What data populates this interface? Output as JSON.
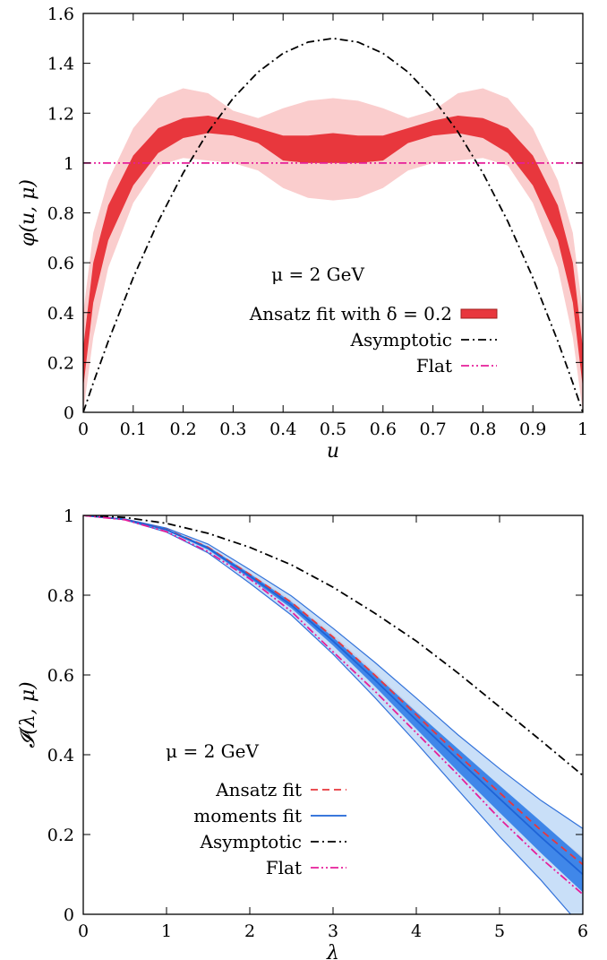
{
  "chart_data": [
    {
      "type": "line",
      "xlabel": "u",
      "ylabel": "φ(u, μ)",
      "xlim": [
        0,
        1
      ],
      "ylim": [
        0,
        1.6
      ],
      "xticks": [
        "0",
        "0.1",
        "0.2",
        "0.3",
        "0.4",
        "0.5",
        "0.6",
        "0.7",
        "0.8",
        "0.9",
        "1"
      ],
      "yticks": [
        "0",
        "0.2",
        "0.4",
        "0.6",
        "0.8",
        "1",
        "1.2",
        "1.4",
        "1.6"
      ],
      "grid": false,
      "legend_position": "center-bottom",
      "annotation": "μ = 2 GeV",
      "x": [
        0,
        0.02,
        0.05,
        0.1,
        0.15,
        0.2,
        0.25,
        0.3,
        0.35,
        0.4,
        0.45,
        0.5,
        0.55,
        0.6,
        0.65,
        0.7,
        0.75,
        0.8,
        0.85,
        0.9,
        0.95,
        0.98,
        1
      ],
      "series": [
        {
          "name": "Ansatz fit with δ = 0.2",
          "style": "band",
          "color": "#e8373d",
          "outer_color": "#f9c8c8",
          "center": [
            0.18,
            0.52,
            0.76,
            0.97,
            1.09,
            1.15,
            1.16,
            1.14,
            1.11,
            1.06,
            1.05,
            1.05,
            1.05,
            1.06,
            1.11,
            1.14,
            1.16,
            1.15,
            1.09,
            0.97,
            0.76,
            0.52,
            0.18
          ],
          "lower": [
            0.1,
            0.44,
            0.69,
            0.91,
            1.04,
            1.1,
            1.12,
            1.11,
            1.08,
            1.01,
            1.0,
            1.0,
            1.0,
            1.01,
            1.08,
            1.11,
            1.12,
            1.1,
            1.04,
            0.91,
            0.69,
            0.44,
            0.1
          ],
          "upper": [
            0.26,
            0.6,
            0.83,
            1.03,
            1.14,
            1.18,
            1.19,
            1.17,
            1.14,
            1.11,
            1.11,
            1.12,
            1.11,
            1.11,
            1.14,
            1.17,
            1.19,
            1.18,
            1.14,
            1.03,
            0.83,
            0.6,
            0.26
          ],
          "outer_lower": [
            0.0,
            0.3,
            0.58,
            0.84,
            0.99,
            1.02,
            1.01,
            1.0,
            0.97,
            0.9,
            0.86,
            0.85,
            0.86,
            0.9,
            0.97,
            1.0,
            1.01,
            1.02,
            0.99,
            0.84,
            0.58,
            0.3,
            0.0
          ],
          "outer_upper": [
            0.4,
            0.72,
            0.93,
            1.14,
            1.26,
            1.3,
            1.28,
            1.21,
            1.18,
            1.22,
            1.25,
            1.26,
            1.25,
            1.22,
            1.18,
            1.21,
            1.28,
            1.3,
            1.26,
            1.14,
            0.93,
            0.72,
            0.4
          ]
        },
        {
          "name": "Asymptotic",
          "style": "dashdot",
          "color": "#000000",
          "values": [
            0,
            0.1176,
            0.285,
            0.54,
            0.765,
            0.96,
            1.125,
            1.26,
            1.365,
            1.44,
            1.485,
            1.5,
            1.485,
            1.44,
            1.365,
            1.26,
            1.125,
            0.96,
            0.765,
            0.54,
            0.285,
            0.1176,
            0
          ]
        },
        {
          "name": "Flat",
          "style": "dashdotdot",
          "color": "#e61e9a",
          "values": [
            1,
            1,
            1,
            1,
            1,
            1,
            1,
            1,
            1,
            1,
            1,
            1,
            1,
            1,
            1,
            1,
            1,
            1,
            1,
            1,
            1,
            1,
            1
          ]
        }
      ]
    },
    {
      "type": "line",
      "xlabel": "λ",
      "ylabel": "𝓘(λ, μ)",
      "xlim": [
        0,
        6
      ],
      "ylim": [
        0,
        1
      ],
      "xticks": [
        "0",
        "1",
        "2",
        "3",
        "4",
        "5",
        "6"
      ],
      "yticks": [
        "0",
        "0.2",
        "0.4",
        "0.6",
        "0.8",
        "1"
      ],
      "grid": false,
      "legend_position": "left-bottom",
      "annotation": "μ = 2 GeV",
      "x": [
        0,
        0.5,
        1,
        1.5,
        2,
        2.5,
        3,
        3.5,
        4,
        4.5,
        5,
        5.5,
        6
      ],
      "series": [
        {
          "name": "Ansatz fit",
          "style": "dashed",
          "color": "#e8373d",
          "band_color": "#b4505a",
          "values": [
            1,
            0.99,
            0.965,
            0.92,
            0.852,
            0.782,
            0.695,
            0.6,
            0.5,
            0.4,
            0.305,
            0.21,
            0.125
          ],
          "lower": [
            1,
            0.99,
            0.964,
            0.918,
            0.848,
            0.777,
            0.688,
            0.592,
            0.49,
            0.388,
            0.29,
            0.193,
            0.105
          ],
          "upper": [
            1,
            0.99,
            0.966,
            0.922,
            0.856,
            0.787,
            0.702,
            0.608,
            0.51,
            0.412,
            0.32,
            0.227,
            0.145
          ]
        },
        {
          "name": "moments fit",
          "style": "solid",
          "color": "#1e64d7",
          "band_color": "#2878e6",
          "outer_color": "#c4dcf8",
          "values": [
            1,
            0.99,
            0.964,
            0.918,
            0.848,
            0.775,
            0.685,
            0.588,
            0.487,
            0.388,
            0.29,
            0.193,
            0.1
          ],
          "lower": [
            1,
            0.99,
            0.962,
            0.914,
            0.842,
            0.767,
            0.674,
            0.572,
            0.465,
            0.358,
            0.255,
            0.153,
            0.055
          ],
          "upper": [
            1,
            0.99,
            0.966,
            0.922,
            0.854,
            0.783,
            0.695,
            0.602,
            0.507,
            0.415,
            0.323,
            0.232,
            0.14
          ],
          "outer_lower": [
            1,
            0.989,
            0.958,
            0.906,
            0.83,
            0.75,
            0.652,
            0.544,
            0.43,
            0.312,
            0.195,
            0.085,
            -0.035
          ],
          "outer_upper": [
            1,
            0.991,
            0.968,
            0.928,
            0.864,
            0.798,
            0.717,
            0.632,
            0.542,
            0.45,
            0.365,
            0.285,
            0.215
          ]
        },
        {
          "name": "Asymptotic",
          "style": "dashdot",
          "color": "#000000",
          "values": [
            1,
            0.995,
            0.98,
            0.955,
            0.92,
            0.876,
            0.82,
            0.755,
            0.685,
            0.605,
            0.52,
            0.435,
            0.348
          ]
        },
        {
          "name": "Flat",
          "style": "dashdotdot",
          "color": "#e61e9a",
          "values": [
            1,
            0.989,
            0.959,
            0.909,
            0.841,
            0.759,
            0.658,
            0.56,
            0.455,
            0.35,
            0.24,
            0.14,
            0.05
          ]
        }
      ]
    }
  ]
}
